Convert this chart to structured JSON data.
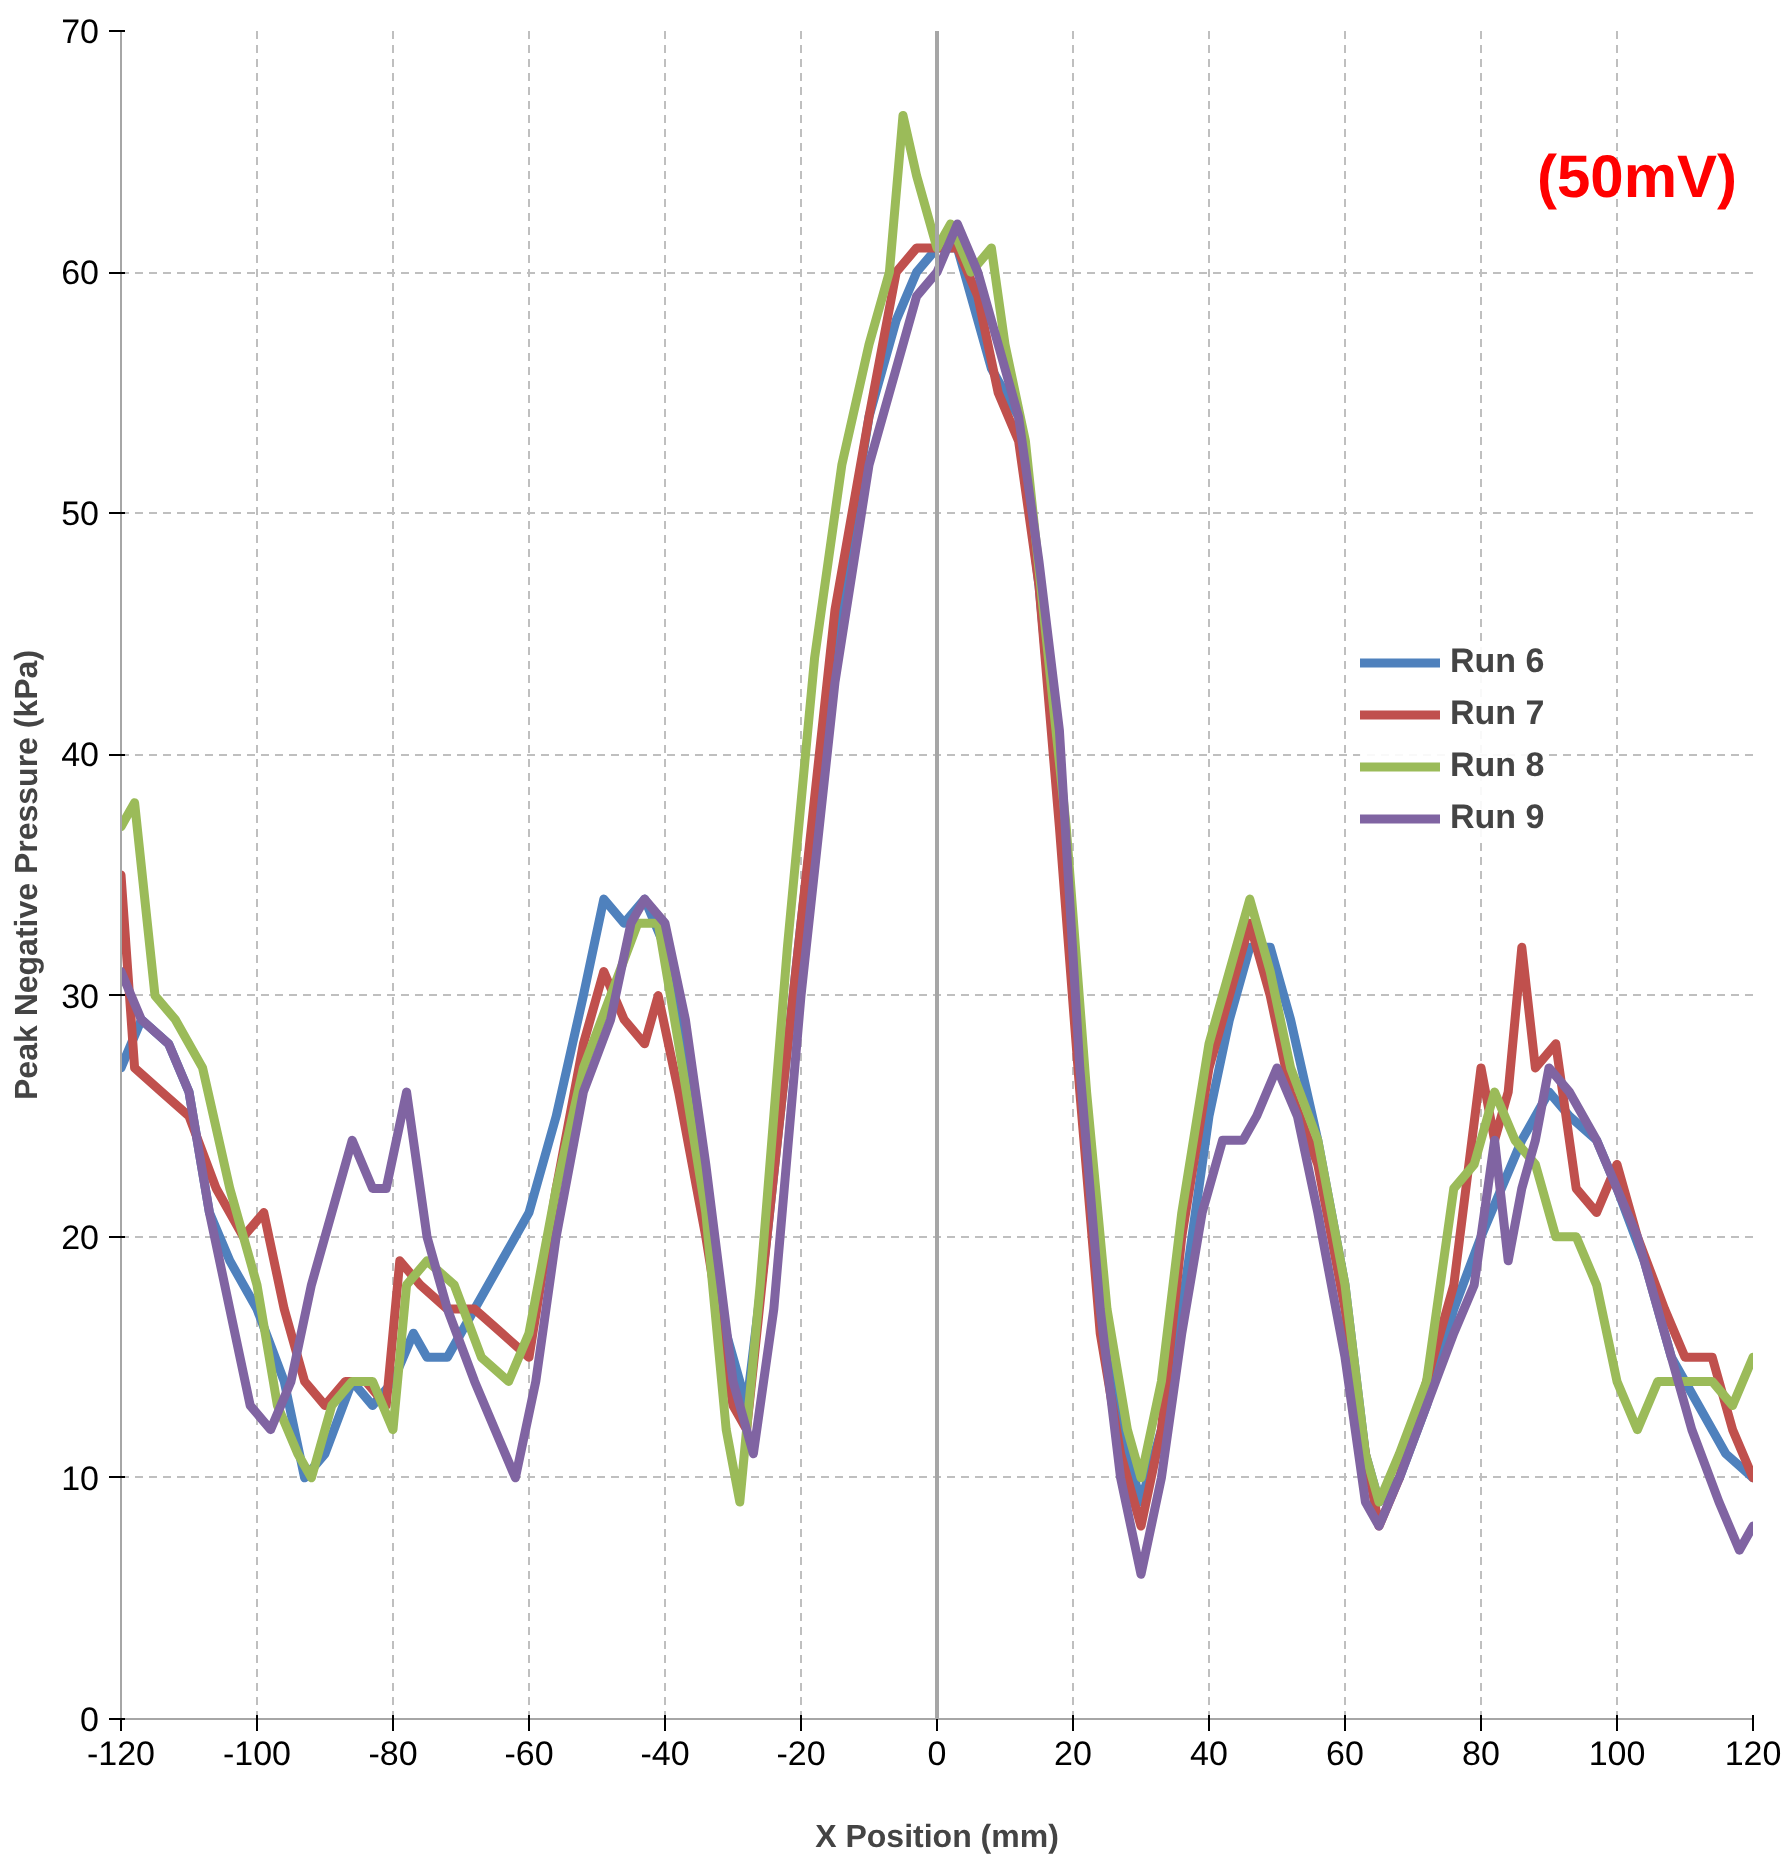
{
  "chart_data": {
    "type": "line",
    "xlabel": "X Position (mm)",
    "ylabel": "Peak Negative Pressure (kPa)",
    "annotations": [
      "(50mV)"
    ],
    "xlim": [
      -120,
      120
    ],
    "xticks": [
      -120,
      -100,
      -80,
      -60,
      -40,
      -20,
      0,
      20,
      40,
      60,
      80,
      100,
      120
    ],
    "ylim": [
      0,
      70
    ],
    "yticks": [
      0,
      10,
      20,
      30,
      40,
      50,
      60,
      70
    ],
    "grid": true,
    "legend": "right",
    "marker": "none",
    "line_style": "solid",
    "ref_lines": [
      {
        "axis": "x",
        "value": 0,
        "color": "#a6a6a6"
      }
    ],
    "series": [
      {
        "name": "Run 6",
        "color": "#4f81bd",
        "x": [
          -120,
          -117,
          -113,
          -110,
          -107,
          -104,
          -100,
          -96,
          -93,
          -90,
          -86,
          -83,
          -80,
          -77,
          -75,
          -72,
          -68,
          -64,
          -60,
          -56,
          -52,
          -49,
          -46,
          -43,
          -40,
          -37,
          -34,
          -31,
          -28,
          -25,
          -20,
          -15,
          -10,
          -6,
          -3,
          0,
          3,
          6,
          8,
          12,
          15,
          18,
          21,
          24,
          27,
          30,
          33,
          36,
          40,
          43,
          46,
          49,
          52,
          56,
          60,
          63,
          65,
          68,
          72,
          76,
          80,
          83,
          86,
          90,
          93,
          97,
          100,
          104,
          108,
          112,
          116,
          120
        ],
        "values": [
          27,
          29,
          28,
          26,
          21,
          19,
          17,
          14,
          10,
          11,
          14,
          13,
          14,
          16,
          15,
          15,
          17,
          19,
          21,
          25,
          30,
          34,
          33,
          34,
          32,
          28,
          22,
          16,
          13,
          20,
          33,
          45,
          54,
          58,
          60,
          61,
          61,
          58,
          56,
          54,
          47,
          38,
          28,
          18,
          12,
          9,
          12,
          17,
          25,
          29,
          32,
          32,
          29,
          24,
          18,
          11,
          9,
          10,
          13,
          17,
          20,
          22,
          24,
          26,
          25,
          24,
          22,
          19,
          15,
          13,
          11,
          10
        ]
      },
      {
        "name": "Run 7",
        "color": "#c0504d",
        "x": [
          -120,
          -118,
          -114,
          -110,
          -106,
          -102,
          -99,
          -96,
          -93,
          -90,
          -87,
          -84,
          -81,
          -79,
          -76,
          -72,
          -68,
          -64,
          -60,
          -56,
          -52,
          -49,
          -46,
          -43,
          -41,
          -38,
          -34,
          -30,
          -28,
          -25,
          -20,
          -15,
          -10,
          -6,
          -3,
          0,
          3,
          6,
          9,
          12,
          15,
          18,
          21,
          24,
          27,
          30,
          33,
          36,
          40,
          43,
          46,
          49,
          52,
          56,
          60,
          63,
          65,
          68,
          72,
          76,
          80,
          82,
          84,
          86,
          88,
          91,
          94,
          97,
          100,
          103,
          107,
          110,
          114,
          117,
          120
        ],
        "values": [
          35,
          27,
          26,
          25,
          22,
          20,
          21,
          17,
          14,
          13,
          14,
          14,
          13,
          19,
          18,
          17,
          17,
          16,
          15,
          22,
          28,
          31,
          29,
          28,
          30,
          26,
          20,
          13,
          12,
          20,
          33,
          46,
          54,
          60,
          61,
          61,
          61,
          59,
          55,
          53,
          47,
          37,
          26,
          16,
          11,
          8,
          12,
          20,
          27,
          30,
          33,
          30,
          26,
          23,
          17,
          11,
          8,
          10,
          14,
          18,
          27,
          24,
          26,
          32,
          27,
          28,
          22,
          21,
          23,
          20,
          17,
          15,
          15,
          12,
          10
        ]
      },
      {
        "name": "Run 8",
        "color": "#9bbb59",
        "x": [
          -120,
          -118,
          -115,
          -112,
          -108,
          -104,
          -100,
          -97,
          -94,
          -92,
          -89,
          -86,
          -83,
          -80,
          -78,
          -75,
          -71,
          -67,
          -63,
          -60,
          -56,
          -52,
          -48,
          -44,
          -41,
          -38,
          -34,
          -31,
          -29,
          -26,
          -22,
          -18,
          -14,
          -10,
          -7,
          -5,
          -3,
          0,
          2,
          5,
          8,
          10,
          13,
          16,
          19,
          22,
          25,
          28,
          30,
          33,
          36,
          40,
          43,
          46,
          49,
          52,
          56,
          60,
          63,
          65,
          68,
          72,
          76,
          79,
          82,
          85,
          88,
          91,
          94,
          97,
          100,
          103,
          106,
          110,
          114,
          117,
          120
        ],
        "values": [
          37,
          38,
          30,
          29,
          27,
          22,
          18,
          13,
          11,
          10,
          13,
          14,
          14,
          12,
          18,
          19,
          18,
          15,
          14,
          16,
          22,
          27,
          30,
          33,
          33,
          28,
          21,
          12,
          9,
          18,
          32,
          44,
          52,
          57,
          60,
          66.5,
          64,
          61,
          62,
          60,
          61,
          57,
          53,
          45,
          37,
          26,
          17,
          12,
          10,
          14,
          21,
          28,
          31,
          34,
          31,
          27,
          24,
          18,
          11,
          9,
          11,
          14,
          22,
          23,
          26,
          24,
          23,
          20,
          20,
          18,
          14,
          12,
          14,
          14,
          14,
          13,
          15
        ]
      },
      {
        "name": "Run 9",
        "color": "#8064a2",
        "x": [
          -120,
          -117,
          -113,
          -110,
          -107,
          -104,
          -101,
          -98,
          -95,
          -92,
          -89,
          -86,
          -83,
          -81,
          -78,
          -75,
          -72,
          -68,
          -65,
          -62,
          -59,
          -56,
          -52,
          -48,
          -45,
          -43,
          -40,
          -37,
          -34,
          -30,
          -27,
          -24,
          -20,
          -15,
          -10,
          -6,
          -3,
          0,
          3,
          6,
          9,
          12,
          15,
          18,
          21,
          24,
          27,
          30,
          33,
          36,
          39,
          42,
          45,
          47,
          50,
          53,
          56,
          60,
          63,
          65,
          68,
          72,
          76,
          79,
          82,
          84,
          86,
          88,
          90,
          93,
          97,
          100,
          103,
          107,
          111,
          115,
          118,
          120
        ],
        "values": [
          31,
          29,
          28,
          26,
          21,
          17,
          13,
          12,
          14,
          18,
          21,
          24,
          22,
          22,
          26,
          20,
          17,
          14,
          12,
          10,
          14,
          20,
          26,
          29,
          33,
          34,
          33,
          29,
          23,
          14,
          11,
          17,
          30,
          43,
          52,
          56,
          59,
          60,
          62,
          60,
          57,
          54,
          48,
          41,
          27,
          17,
          10,
          6,
          10,
          16,
          21,
          24,
          24,
          25,
          27,
          25,
          21,
          15,
          9,
          8,
          10,
          13,
          16,
          18,
          24,
          19,
          22,
          24,
          27,
          26,
          24,
          22,
          20,
          16,
          12,
          9,
          7,
          8
        ]
      }
    ]
  }
}
